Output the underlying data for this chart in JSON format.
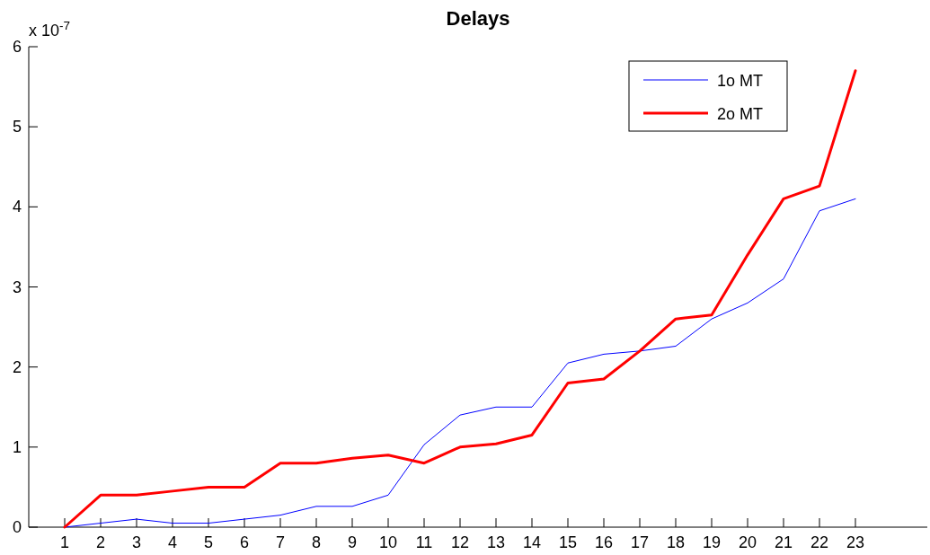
{
  "chart_data": {
    "type": "line",
    "title": "Delays",
    "annotations": [
      "x 10$^{-7}$"
    ],
    "x": [
      1,
      2,
      3,
      4,
      5,
      6,
      7,
      8,
      9,
      10,
      11,
      12,
      13,
      14,
      15,
      16,
      17,
      18,
      19,
      20,
      21,
      22,
      23
    ],
    "xlim": [
      0,
      25
    ],
    "xticks": [
      1,
      2,
      3,
      4,
      5,
      6,
      7,
      8,
      9,
      10,
      11,
      12,
      13,
      14,
      15,
      16,
      17,
      18,
      19,
      20,
      21,
      22,
      23
    ],
    "ylim": [
      0,
      6
    ],
    "yticks": [
      0,
      1,
      2,
      3,
      4,
      5,
      6
    ],
    "grid": false,
    "legend": "top right",
    "marker": "none",
    "line_style": "solid",
    "series": [
      {
        "name": "1o MT",
        "color": "#0000ff",
        "values": [
          0,
          0.05,
          0.1,
          0.05,
          0.05,
          0.1,
          0.15,
          0.26,
          0.26,
          0.4,
          1.03,
          1.4,
          1.5,
          1.5,
          2.05,
          2.16,
          2.2,
          2.26,
          2.6,
          2.8,
          3.1,
          3.95,
          4.1
        ]
      },
      {
        "name": "2o MT",
        "color": "#ff0000",
        "values": [
          0,
          0.4,
          0.4,
          0.45,
          0.5,
          0.5,
          0.8,
          0.8,
          0.86,
          0.9,
          0.8,
          1.0,
          1.04,
          1.15,
          1.8,
          1.85,
          2.2,
          2.6,
          2.65,
          3.4,
          4.1,
          4.26,
          5.7
        ]
      }
    ]
  }
}
